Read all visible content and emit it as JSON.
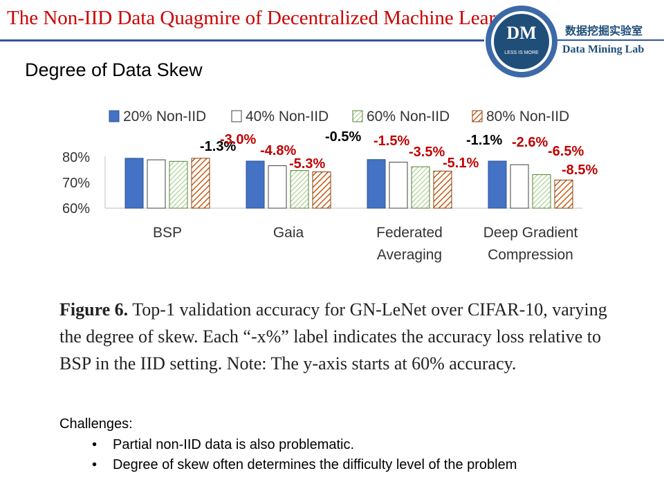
{
  "header": {
    "title": "The Non-IID Data Quagmire of Decentralized Machine Learning",
    "logo_text": "DM",
    "logo_motto": "LESS IS MORE",
    "lab_name_cn": "数据挖掘实验室",
    "lab_name_en": "Data Mining Lab"
  },
  "section_title": "Degree of Data Skew",
  "chart_data": {
    "type": "bar",
    "categories": [
      [
        "BSP"
      ],
      [
        "Gaia"
      ],
      [
        "Federated",
        "Averaging"
      ],
      [
        "Deep Gradient",
        "Compression"
      ]
    ],
    "series": [
      {
        "name": "20% Non-IID",
        "values": [
          79.5,
          78.4,
          79.0,
          78.4
        ]
      },
      {
        "name": "40% Non-IID",
        "values": [
          78.9,
          76.6,
          78.0,
          77.0
        ]
      },
      {
        "name": "60% Non-IID",
        "values": [
          78.3,
          74.7,
          76.2,
          73.1
        ]
      },
      {
        "name": "80% Non-IID",
        "values": [
          79.5,
          74.2,
          74.5,
          71.0
        ]
      }
    ],
    "annotations": [
      [
        "-1.3%",
        "-3.0%",
        "-4.8%",
        "-5.3%"
      ],
      [
        "-0.5%",
        "-1.5%",
        "-3.5%",
        "-5.1%"
      ],
      [
        "-1.1%",
        "-2.6%",
        "-6.5%",
        "-8.5%"
      ]
    ],
    "annotation_colors": [
      "#000000",
      "#c00000",
      "#c00000",
      "#c00000"
    ],
    "yticks": [
      "80%",
      "70%",
      "60%"
    ],
    "ytick_values": [
      80,
      70,
      60
    ],
    "ylim": [
      60,
      85
    ],
    "legend_position": "top",
    "grid": false,
    "colors": {
      "s20": "#4472c4",
      "s40": "#ffffff",
      "s60": "#a9d18e",
      "s80": "#c55a11",
      "axis": "#bfbfbf"
    }
  },
  "caption": {
    "lead": "Figure 6.",
    "text": " Top-1 validation accuracy for GN-LeNet over CIFAR-10, varying the degree of skew. Each “-x%” label indicates the accuracy loss relative to BSP in the IID setting. Note: The y-axis starts at 60% accuracy."
  },
  "challenges": {
    "heading": "Challenges:",
    "items": [
      "Partial non-IID data is also problematic.",
      "Degree of skew often determines the difficulty level of the problem"
    ]
  }
}
